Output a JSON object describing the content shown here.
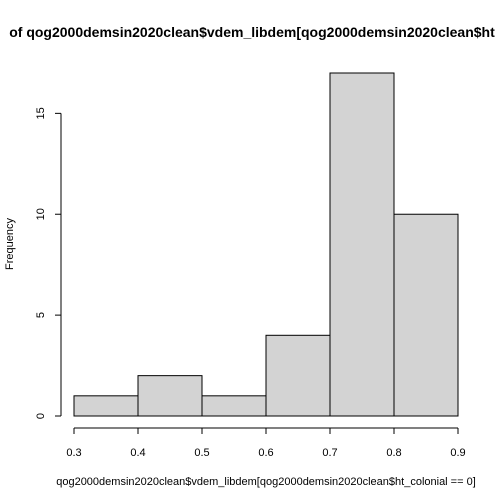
{
  "chart_data": {
    "type": "bar",
    "title": "of qog2000demsin2020clean$vdem_libdem[qog2000demsin2020clean$ht",
    "xlabel": "qog2000demsin2020clean$vdem_libdem[qog2000demsin2020clean$ht_colonial == 0]",
    "ylabel": "Frequency",
    "bins": [
      {
        "from": 0.3,
        "to": 0.4,
        "count": 1
      },
      {
        "from": 0.4,
        "to": 0.5,
        "count": 2
      },
      {
        "from": 0.5,
        "to": 0.6,
        "count": 1
      },
      {
        "from": 0.6,
        "to": 0.7,
        "count": 4
      },
      {
        "from": 0.7,
        "to": 0.8,
        "count": 17
      },
      {
        "from": 0.8,
        "to": 0.9,
        "count": 10
      }
    ],
    "xlim": [
      0.3,
      0.9
    ],
    "ylim": [
      0,
      17
    ],
    "xticks": [
      "0.3",
      "0.4",
      "0.5",
      "0.6",
      "0.7",
      "0.8",
      "0.9"
    ],
    "yticks": [
      "0",
      "5",
      "10",
      "15"
    ],
    "grid": false,
    "colors": {
      "bar_fill": "#d3d3d3",
      "bar_stroke": "#000000"
    }
  }
}
